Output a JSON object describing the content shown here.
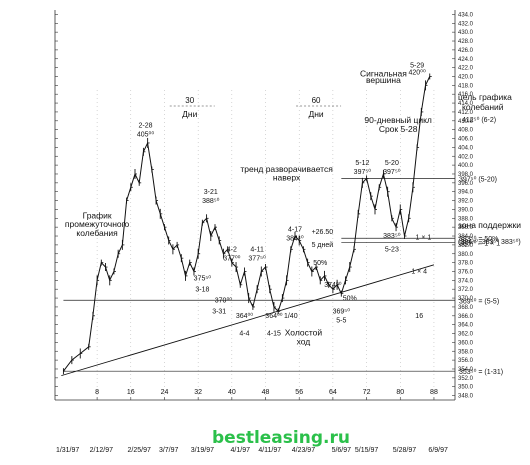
{
  "chart_data": {
    "type": "line",
    "title": "",
    "xlabel": "",
    "ylabel": "",
    "x_tick_labels": [
      "8",
      "16",
      "24",
      "32",
      "40",
      "48",
      "56",
      "64",
      "72",
      "80",
      "88"
    ],
    "x_tick_values": [
      8,
      16,
      24,
      32,
      40,
      48,
      56,
      64,
      72,
      80,
      88
    ],
    "top_tick_labels": [
      "30",
      "60"
    ],
    "top_tick_values": [
      30,
      60
    ],
    "top_tick_caption": "Дни",
    "date_labels": [
      "1/31/97",
      "2/12/97",
      "2/25/97",
      "3/7/97",
      "3/19/97",
      "4/1/97",
      "4/11/97",
      "4/23/97",
      "5/6/97",
      "5/15/97",
      "5/28/97",
      "6/9/97"
    ],
    "date_values": [
      1,
      9,
      18,
      25,
      33,
      42,
      49,
      57,
      66,
      72,
      81,
      89
    ],
    "y_tick_values": [
      348,
      350,
      352,
      354,
      356,
      358,
      360,
      362,
      364,
      366,
      368,
      370,
      372,
      374,
      376,
      378,
      380,
      382,
      384,
      386,
      388,
      390,
      392,
      394,
      396,
      398,
      400,
      402,
      404,
      406,
      408,
      410,
      412,
      414,
      416,
      418,
      420,
      422,
      424,
      426,
      428,
      430,
      432,
      434
    ],
    "ylim": [
      347,
      435
    ],
    "xlim": [
      -2,
      93
    ],
    "series": [
      {
        "points": [
          [
            0,
            353.5
          ],
          [
            2,
            356
          ],
          [
            4,
            357.5
          ],
          [
            6,
            359
          ],
          [
            7,
            366
          ],
          [
            8,
            374
          ],
          [
            9,
            378
          ],
          [
            10,
            377
          ],
          [
            11,
            374
          ],
          [
            12,
            376
          ],
          [
            13,
            380
          ],
          [
            14,
            382
          ],
          [
            15,
            392
          ],
          [
            16,
            395
          ],
          [
            17,
            398
          ],
          [
            18,
            396
          ],
          [
            19,
            403
          ],
          [
            20,
            405
          ],
          [
            21,
            399
          ],
          [
            22,
            392
          ],
          [
            23,
            389
          ],
          [
            24,
            386
          ],
          [
            25,
            383
          ],
          [
            26,
            381
          ],
          [
            27,
            382
          ],
          [
            28,
            379
          ],
          [
            29,
            375
          ],
          [
            30,
            378
          ],
          [
            31,
            376
          ],
          [
            32,
            380
          ],
          [
            33,
            387
          ],
          [
            34,
            388
          ],
          [
            35,
            384
          ],
          [
            36,
            386
          ],
          [
            37,
            383
          ],
          [
            38,
            380
          ],
          [
            39,
            381
          ],
          [
            40,
            378
          ],
          [
            41,
            377
          ],
          [
            42,
            373
          ],
          [
            43,
            376
          ],
          [
            44,
            370
          ],
          [
            45,
            368
          ],
          [
            46,
            372
          ],
          [
            47,
            376
          ],
          [
            48,
            377
          ],
          [
            49,
            372
          ],
          [
            50,
            368
          ],
          [
            51,
            367
          ],
          [
            52,
            370
          ],
          [
            53,
            374
          ],
          [
            54,
            381
          ],
          [
            55,
            384
          ],
          [
            56,
            383
          ],
          [
            57,
            381
          ],
          [
            58,
            378
          ],
          [
            59,
            376
          ],
          [
            60,
            377
          ],
          [
            61,
            374
          ],
          [
            62,
            375
          ],
          [
            63,
            373
          ],
          [
            64,
            372
          ],
          [
            65,
            373
          ],
          [
            66,
            371
          ],
          [
            67,
            374
          ],
          [
            68,
            377
          ],
          [
            69,
            381
          ],
          [
            70,
            389
          ],
          [
            71,
            396
          ],
          [
            72,
            397
          ],
          [
            73,
            393
          ],
          [
            74,
            390
          ],
          [
            75,
            395
          ],
          [
            76,
            398
          ],
          [
            77,
            394
          ],
          [
            78,
            388
          ],
          [
            79,
            386
          ],
          [
            80,
            390
          ],
          [
            81,
            384
          ],
          [
            82,
            388
          ],
          [
            83,
            395
          ],
          [
            84,
            404
          ],
          [
            85,
            412
          ],
          [
            86,
            418
          ],
          [
            87,
            420
          ]
        ]
      }
    ],
    "trendline_points": [
      [
        -0.5,
        352.5
      ],
      [
        88,
        377.5
      ]
    ],
    "horizontal_levels": [
      {
        "y": 397,
        "text": "397⁵⁰ (5-20)"
      },
      {
        "y": 383.5,
        "text": "383⁵⁰ = 50%"
      },
      {
        "y": 382.5,
        "text": "383⁵⁰ = 1 × 1"
      },
      {
        "y": 369.5,
        "text": "369⁵⁰ = (5-5)"
      },
      {
        "y": 353.5,
        "text": "353⁵⁰ = (1-31)"
      }
    ],
    "zone_text": "зона поддержки",
    "zone_detail": "(384⁴⁰, 383⁵⁰ 383⁵⁰)",
    "target_text": [
      "цель графика",
      "колебаний"
    ],
    "target_value": "412⁵⁰ (6-2)",
    "annotations": [
      {
        "x": 19.5,
        "y": 408.5,
        "text": "2-28"
      },
      {
        "x": 19.5,
        "y": 406.5,
        "text": "405⁰⁰"
      },
      {
        "x": 35,
        "y": 393.5,
        "text": "3-21"
      },
      {
        "x": 35,
        "y": 391.5,
        "text": "388⁵⁰"
      },
      {
        "x": 40,
        "y": 380.5,
        "text": "4-2"
      },
      {
        "x": 40,
        "y": 378.5,
        "text": "377⁰⁰"
      },
      {
        "x": 46,
        "y": 380.5,
        "text": "4-11"
      },
      {
        "x": 46,
        "y": 378.5,
        "text": "377⁵⁰"
      },
      {
        "x": 33,
        "y": 374,
        "text": "375⁵⁰"
      },
      {
        "x": 33,
        "y": 371.5,
        "text": "3-18"
      },
      {
        "x": 38,
        "y": 369,
        "text": "370⁰⁰"
      },
      {
        "x": 37,
        "y": 366.5,
        "text": "3-31"
      },
      {
        "x": 43,
        "y": 365.5,
        "text": "364⁰⁰"
      },
      {
        "x": 43,
        "y": 361.5,
        "text": "4-4"
      },
      {
        "x": 50,
        "y": 365.5,
        "text": "364⁰⁰"
      },
      {
        "x": 50,
        "y": 361.5,
        "text": "4-15"
      },
      {
        "x": 54,
        "y": 365.5,
        "text": "1/40"
      },
      {
        "x": 55,
        "y": 385,
        "text": "4-17"
      },
      {
        "x": 55,
        "y": 383,
        "text": "384⁴⁰"
      },
      {
        "x": 61.5,
        "y": 384.5,
        "text": "+26.50"
      },
      {
        "x": 61.5,
        "y": 381.5,
        "text": "5 дней"
      },
      {
        "x": 61,
        "y": 377.5,
        "text": "50%"
      },
      {
        "x": 64,
        "y": 372.5,
        "text": "374⁰⁰"
      },
      {
        "x": 68,
        "y": 369.5,
        "text": "50%"
      },
      {
        "x": 66,
        "y": 366.5,
        "text": "369⁵⁰"
      },
      {
        "x": 66,
        "y": 364.5,
        "text": "5-5"
      },
      {
        "x": 71,
        "y": 400,
        "text": "5-12"
      },
      {
        "x": 71,
        "y": 398,
        "text": "397⁵⁰"
      },
      {
        "x": 78,
        "y": 400,
        "text": "5-20"
      },
      {
        "x": 78,
        "y": 398,
        "text": "397⁵⁰"
      },
      {
        "x": 78,
        "y": 383.5,
        "text": "383⁵⁰"
      },
      {
        "x": 78,
        "y": 380.5,
        "text": "5-23"
      },
      {
        "x": 84,
        "y": 422,
        "text": "5-29"
      },
      {
        "x": 84,
        "y": 420.5,
        "text": "420⁰⁰"
      },
      {
        "x": 84.5,
        "y": 375.5,
        "text": "1 × 4"
      },
      {
        "x": 84.5,
        "y": 365.5,
        "text": "16"
      },
      {
        "x": 85.5,
        "y": 383.2,
        "text": "1 × 1"
      }
    ],
    "labels": [
      {
        "x": 8,
        "y": 388,
        "text": "График"
      },
      {
        "x": 8,
        "y": 386,
        "text": "промежуточного"
      },
      {
        "x": 8,
        "y": 384,
        "text": "колебания"
      },
      {
        "x": 53,
        "y": 398.5,
        "text": "тренд разворачивается"
      },
      {
        "x": 53,
        "y": 396.5,
        "text": "наверх"
      },
      {
        "x": 57,
        "y": 361.5,
        "text": "Холостой"
      },
      {
        "x": 57,
        "y": 359.5,
        "text": "ход"
      },
      {
        "x": 76,
        "y": 420,
        "text": "Сигнальная"
      },
      {
        "x": 76,
        "y": 418.5,
        "text": "вершина"
      },
      {
        "x": 79.5,
        "y": 409.5,
        "text": "90-дневный цикл"
      },
      {
        "x": 79.5,
        "y": 407.5,
        "text": "Срок 5-28"
      }
    ]
  },
  "watermark": "bestleasing.ru"
}
